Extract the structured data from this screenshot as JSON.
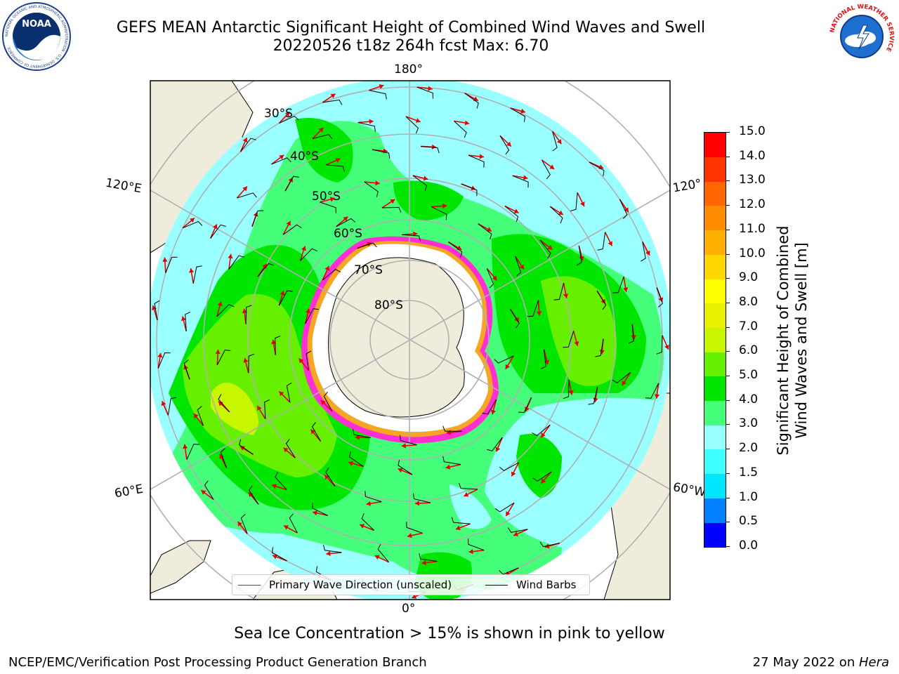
{
  "title": {
    "line1": "GEFS MEAN Antarctic Significant Height of Combined Wind Waves and Swell",
    "line2": "20220526 t18z 264h fcst   Max: 6.70"
  },
  "lon_labels": {
    "top": "180°",
    "bottom": "0°",
    "upper_left": "120°E",
    "upper_right": "120°",
    "lower_left": "60°E",
    "lower_right": "60°W"
  },
  "lat_labels": [
    "30°S",
    "40°S",
    "50°S",
    "60°S",
    "70°S",
    "80°S"
  ],
  "legend": {
    "wave_label": "Primary Wave Direction (unscaled)",
    "barb_label": "Wind Barbs",
    "wave_color": "#ff0000",
    "barb_color": "#000000"
  },
  "colorbar": {
    "label_line1": "Significant Height of Combined",
    "label_line2": "Wind Waves and Swell [m]",
    "ticks": [
      "0.0",
      "0.5",
      "1.0",
      "1.5",
      "2.0",
      "3.0",
      "4.0",
      "5.0",
      "6.0",
      "7.0",
      "8.0",
      "9.0",
      "10.0",
      "11.0",
      "12.0",
      "13.0",
      "14.0",
      "15.0"
    ],
    "colors": [
      "#0000ff",
      "#0080ff",
      "#00e6ff",
      "#40ffff",
      "#9affff",
      "#45ff7a",
      "#00e600",
      "#66f000",
      "#c8f500",
      "#e8f000",
      "#ffff00",
      "#ffd700",
      "#ffb000",
      "#ff8c00",
      "#ff6600",
      "#ff3300",
      "#ff0000"
    ]
  },
  "footnote": "Sea Ice Concentration > 15% is shown in pink to yellow",
  "footer": {
    "left": "NCEP/EMC/Verification Post Processing Product Generation Branch",
    "right_prefix": "27 May 2022 on ",
    "right_host": "Hera"
  },
  "logos": {
    "left": "NOAA",
    "left_ring": "NATIONAL OCEANIC AND ATMOSPHERIC ADMINISTRATION · U.S. DEPARTMENT OF COMMERCE",
    "right_ring": "NATIONAL WEATHER SERVICE"
  }
}
